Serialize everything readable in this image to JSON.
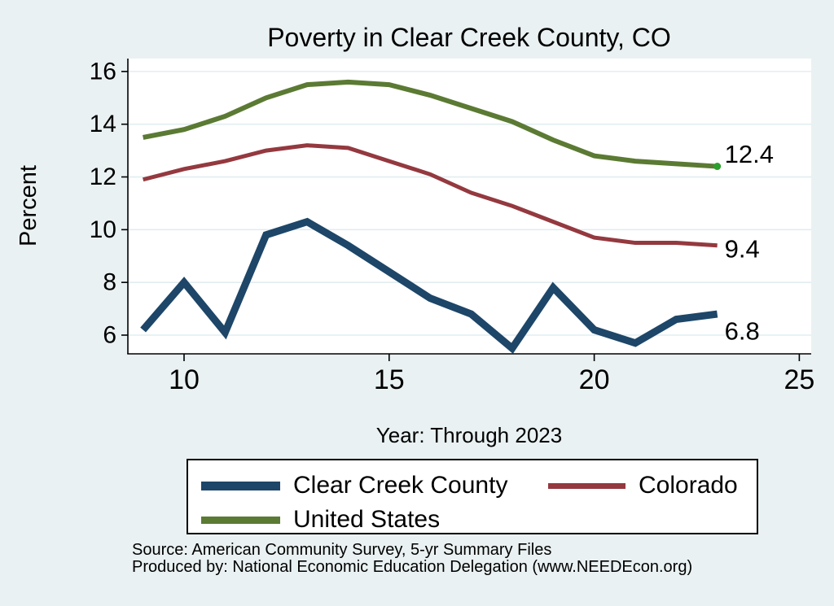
{
  "chart": {
    "title": "Poverty in Clear Creek County, CO",
    "y_axis_title": "Percent",
    "x_axis_title": "Year: Through 2023",
    "source_line1": "Source: American Community Survey, 5-yr Summary Files",
    "source_line2": "Produced by: National Economic Education Delegation (www.NEEDEcon.org)"
  },
  "colors": {
    "background": "#EAF1F2",
    "plot_background": "#FFFFFF",
    "gridline": "#E2EDF0",
    "axis": "#000000",
    "title_text": "#1F3D66",
    "clear_creek": "#1D4668",
    "colorado": "#94393F",
    "united_states": "#5B7A33",
    "end_marker": "#2CA02C"
  },
  "chart_data": {
    "type": "line",
    "title": "Poverty in Clear Creek County, CO",
    "xlabel": "Year: Through 2023",
    "ylabel": "Percent",
    "x": [
      9,
      10,
      11,
      12,
      13,
      14,
      15,
      16,
      17,
      18,
      19,
      20,
      21,
      22,
      23
    ],
    "xticks": [
      10,
      15,
      20,
      25
    ],
    "yticks": [
      6,
      8,
      10,
      12,
      14,
      16
    ],
    "xlim": [
      8.63,
      25.29
    ],
    "ylim": [
      5.29,
      16.49
    ],
    "grid": "horizontal",
    "legend_position": "bottom",
    "series": [
      {
        "name": "Clear Creek County",
        "color": "#1D4668",
        "line_width": 9,
        "values": [
          6.2,
          8.0,
          6.1,
          9.8,
          10.3,
          9.4,
          8.4,
          7.4,
          6.8,
          5.5,
          7.8,
          6.2,
          5.7,
          6.6,
          6.8
        ],
        "end_label": "6.8"
      },
      {
        "name": "Colorado",
        "color": "#94393F",
        "line_width": 5,
        "values": [
          11.9,
          12.3,
          12.6,
          13.0,
          13.2,
          13.1,
          12.6,
          12.1,
          11.4,
          10.9,
          10.3,
          9.7,
          9.5,
          9.5,
          9.4
        ],
        "end_label": "9.4"
      },
      {
        "name": "United States",
        "color": "#5B7A33",
        "line_width": 6,
        "values": [
          13.5,
          13.8,
          14.3,
          15.0,
          15.5,
          15.6,
          15.5,
          15.1,
          14.6,
          14.1,
          13.4,
          12.8,
          12.6,
          12.5,
          12.4
        ],
        "end_label": "12.4",
        "end_marker_color": "#2CA02C"
      }
    ]
  }
}
